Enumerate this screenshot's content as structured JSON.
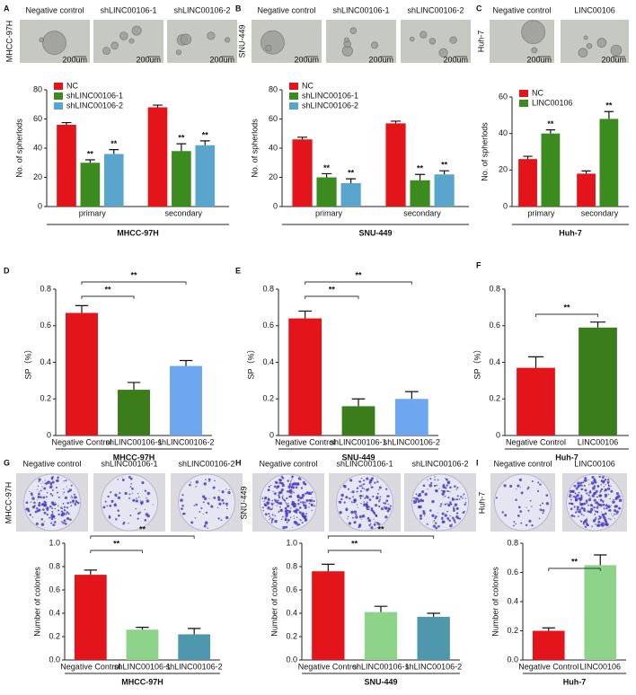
{
  "chart_data": [
    {
      "panel": "A",
      "images": {
        "side_label": "MHCC-97H",
        "labels": [
          "Negative control",
          "shLINC00106-1",
          "shLINC00106-2"
        ],
        "scale_bar": "200um"
      },
      "type": "bar",
      "ylabel": "No. of spherlods",
      "xlabel": "MHCC-97H",
      "categories": [
        "primary",
        "secondary"
      ],
      "ylim": [
        0,
        80
      ],
      "yticks": [
        0,
        20,
        40,
        60,
        80
      ],
      "legend": "top-left",
      "series": [
        {
          "name": "NC",
          "color": "#e3151b",
          "values": [
            56,
            68
          ],
          "errors": [
            1.5,
            1.5
          ]
        },
        {
          "name": "shLINC00106-1",
          "color": "#3c8b1f",
          "values": [
            30,
            38
          ],
          "errors": [
            2,
            5
          ],
          "stars": [
            "**",
            "**"
          ]
        },
        {
          "name": "shLINC00106-2",
          "color": "#5aa5cc",
          "values": [
            36,
            42
          ],
          "errors": [
            3,
            3
          ],
          "stars": [
            "**",
            "**"
          ]
        }
      ]
    },
    {
      "panel": "B",
      "images": {
        "side_label": "SNU-449",
        "labels": [
          "Negative control",
          "shLINC00106-1",
          "shLINC00106-2"
        ],
        "scale_bar": "200um"
      },
      "type": "bar",
      "ylabel": "No. of spherlods",
      "xlabel": "SNU-449",
      "categories": [
        "primary",
        "secondary"
      ],
      "ylim": [
        0,
        80
      ],
      "yticks": [
        0,
        20,
        40,
        60,
        80
      ],
      "legend": "top-left",
      "series": [
        {
          "name": "NC",
          "color": "#e3151b",
          "values": [
            46,
            57
          ],
          "errors": [
            1.5,
            1.5
          ]
        },
        {
          "name": "shLINC00106-1",
          "color": "#3c8b1f",
          "values": [
            20,
            18
          ],
          "errors": [
            2.5,
            4
          ],
          "stars": [
            "**",
            "**"
          ]
        },
        {
          "name": "shLINC00106-2",
          "color": "#5aa5cc",
          "values": [
            16,
            22
          ],
          "errors": [
            3,
            2.5
          ],
          "stars": [
            "**",
            "**"
          ]
        }
      ]
    },
    {
      "panel": "C",
      "images": {
        "side_label": "Huh-7",
        "labels": [
          "Negative control",
          "LINC00106"
        ],
        "scale_bar": "200um"
      },
      "type": "bar",
      "ylabel": "No. of spherlods",
      "xlabel": "Huh-7",
      "categories": [
        "primary",
        "secondary"
      ],
      "ylim": [
        0,
        60
      ],
      "yticks": [
        0,
        20,
        40,
        60
      ],
      "legend": "top-left",
      "series": [
        {
          "name": "NC",
          "color": "#e3151b",
          "values": [
            26,
            18
          ],
          "errors": [
            1.5,
            1.5
          ]
        },
        {
          "name": "LINC00106",
          "color": "#3c8b1f",
          "values": [
            40,
            48
          ],
          "errors": [
            2,
            4
          ],
          "stars": [
            "**",
            "**"
          ]
        }
      ]
    },
    {
      "panel": "D",
      "type": "bar",
      "ylabel": "SP（%）",
      "xlabel": "MHCC-97H",
      "categories": [
        "Negative Control",
        "shLINC00106-1",
        "shLINC00106-2"
      ],
      "values": [
        0.67,
        0.25,
        0.38
      ],
      "errors": [
        0.04,
        0.04,
        0.03
      ],
      "colors": [
        "#e3151b",
        "#3a7d1a",
        "#6ea6f0"
      ],
      "ylim": [
        0,
        0.8
      ],
      "yticks": [
        0,
        0.2,
        0.4,
        0.6,
        0.8
      ],
      "comparisons": [
        {
          "from": 0,
          "to": 1,
          "label": "**"
        },
        {
          "from": 0,
          "to": 2,
          "label": "**"
        }
      ]
    },
    {
      "panel": "E",
      "type": "bar",
      "ylabel": "SP（%）",
      "xlabel": "SNU-449",
      "categories": [
        "Negative Control",
        "shLINC00106-1",
        "shLINC00106-2"
      ],
      "values": [
        0.64,
        0.16,
        0.2
      ],
      "errors": [
        0.04,
        0.04,
        0.04
      ],
      "colors": [
        "#e3151b",
        "#3a7d1a",
        "#6ea6f0"
      ],
      "ylim": [
        0,
        0.8
      ],
      "yticks": [
        0,
        0.2,
        0.4,
        0.6,
        0.8
      ],
      "comparisons": [
        {
          "from": 0,
          "to": 1,
          "label": "**"
        },
        {
          "from": 0,
          "to": 2,
          "label": "**"
        }
      ]
    },
    {
      "panel": "F",
      "type": "bar",
      "ylabel": "SP（%）",
      "xlabel": "Huh-7",
      "categories": [
        "Negative Control",
        "LINC00106"
      ],
      "values": [
        0.37,
        0.59
      ],
      "errors": [
        0.06,
        0.03
      ],
      "colors": [
        "#e3151b",
        "#3a7d1a"
      ],
      "ylim": [
        0,
        0.8
      ],
      "yticks": [
        0,
        0.2,
        0.4,
        0.6,
        0.8
      ],
      "comparisons": [
        {
          "from": 0,
          "to": 1,
          "label": "**"
        }
      ]
    },
    {
      "panel": "G",
      "images": {
        "side_label": "MHCC-97H",
        "labels": [
          "Negative control",
          "shLINC00106-1",
          "shLINC00106-2"
        ]
      },
      "type": "bar",
      "ylabel": "Number of colonies",
      "xlabel": "MHCC-97H",
      "categories": [
        "Negative Control",
        "shLINC00106-1",
        "shLINC00106-2"
      ],
      "values": [
        0.73,
        0.26,
        0.22
      ],
      "errors": [
        0.04,
        0.02,
        0.05
      ],
      "colors": [
        "#e3151b",
        "#8dd48a",
        "#4f97ad"
      ],
      "ylim": [
        0,
        1.0
      ],
      "yticks": [
        {
          "value": 0,
          "label": "0.0"
        },
        0.2,
        0.4,
        0.6,
        0.8,
        {
          "value": 1,
          "label": "1.0"
        }
      ],
      "comparisons": [
        {
          "from": 0,
          "to": 1,
          "label": "**"
        },
        {
          "from": 0,
          "to": 2,
          "label": "**"
        }
      ]
    },
    {
      "panel": "H",
      "images": {
        "side_label": "SNU-449",
        "labels": [
          "Negative control",
          "shLINC00106-1",
          "shLINC00106-2"
        ]
      },
      "type": "bar",
      "ylabel": "Number of colonies",
      "xlabel": "SNU-449",
      "categories": [
        "Negative Control",
        "shLINC00106-1",
        "shLINC00106-2"
      ],
      "values": [
        0.76,
        0.41,
        0.37
      ],
      "errors": [
        0.06,
        0.05,
        0.03
      ],
      "colors": [
        "#e3151b",
        "#8dd48a",
        "#4f97ad"
      ],
      "ylim": [
        0,
        1.0
      ],
      "yticks": [
        {
          "value": 0,
          "label": "0.0"
        },
        0.2,
        0.4,
        0.6,
        0.8,
        {
          "value": 1,
          "label": "1.0"
        }
      ],
      "comparisons": [
        {
          "from": 0,
          "to": 1,
          "label": "**"
        },
        {
          "from": 0,
          "to": 2,
          "label": "**"
        }
      ]
    },
    {
      "panel": "I",
      "images": {
        "side_label": "Huh-7",
        "labels": [
          "Negative control",
          "LINC00106"
        ]
      },
      "type": "bar",
      "ylabel": "Number of colonies",
      "xlabel": "Huh-7",
      "categories": [
        "Negative Control",
        "LINC00106"
      ],
      "values": [
        0.2,
        0.65
      ],
      "errors": [
        0.02,
        0.07
      ],
      "colors": [
        "#e3151b",
        "#8dd48a"
      ],
      "ylim": [
        0,
        0.8
      ],
      "yticks": [
        {
          "value": 0,
          "label": "0.0"
        },
        0.2,
        0.4,
        0.6,
        0.8
      ],
      "comparisons": [
        {
          "from": 0,
          "to": 1,
          "label": "**"
        }
      ]
    }
  ]
}
